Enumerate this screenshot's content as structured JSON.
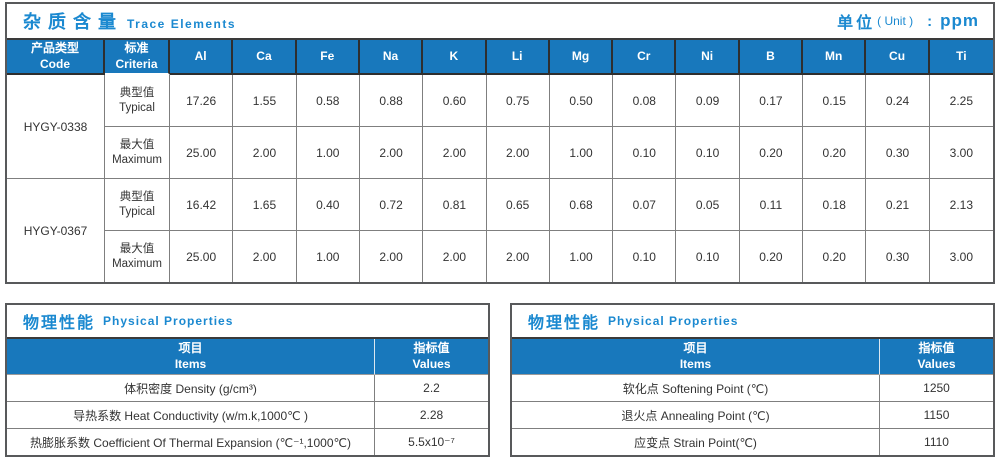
{
  "colors": {
    "header_blue": "#1878bc",
    "title_blue": "#1b89d0",
    "grid_gray": "#7f7f7f",
    "frame_gray": "#58595b",
    "text": "#333333"
  },
  "trace_table": {
    "title_zh": "杂质含量",
    "title_en": "Trace Elements",
    "unit_zh": "单位",
    "unit_en": "( Unit )",
    "unit_colon": ":",
    "unit_value": "ppm",
    "col_code_zh": "产品类型",
    "col_code_en": "Code",
    "col_criteria_zh": "标准",
    "col_criteria_en": "Criteria",
    "elements": [
      "Al",
      "Ca",
      "Fe",
      "Na",
      "K",
      "Li",
      "Mg",
      "Cr",
      "Ni",
      "B",
      "Mn",
      "Cu",
      "Ti"
    ],
    "products": [
      {
        "code": "HYGY-0338",
        "rows": [
          {
            "label_zh": "典型值",
            "label_en": "Typical",
            "values": [
              "17.26",
              "1.55",
              "0.58",
              "0.88",
              "0.60",
              "0.75",
              "0.50",
              "0.08",
              "0.09",
              "0.17",
              "0.15",
              "0.24",
              "2.25"
            ]
          },
          {
            "label_zh": "最大值",
            "label_en": "Maximum",
            "values": [
              "25.00",
              "2.00",
              "1.00",
              "2.00",
              "2.00",
              "2.00",
              "1.00",
              "0.10",
              "0.10",
              "0.20",
              "0.20",
              "0.30",
              "3.00"
            ]
          }
        ]
      },
      {
        "code": "HYGY-0367",
        "rows": [
          {
            "label_zh": "典型值",
            "label_en": "Typical",
            "values": [
              "16.42",
              "1.65",
              "0.40",
              "0.72",
              "0.81",
              "0.65",
              "0.68",
              "0.07",
              "0.05",
              "0.11",
              "0.18",
              "0.21",
              "2.13"
            ]
          },
          {
            "label_zh": "最大值",
            "label_en": "Maximum",
            "values": [
              "25.00",
              "2.00",
              "1.00",
              "2.00",
              "2.00",
              "2.00",
              "1.00",
              "0.10",
              "0.10",
              "0.20",
              "0.20",
              "0.30",
              "3.00"
            ]
          }
        ]
      }
    ]
  },
  "physical_left": {
    "title_zh": "物理性能",
    "title_en": "Physical Properties",
    "col_item_zh": "项目",
    "col_item_en": "Items",
    "col_value_zh": "指标值",
    "col_value_en": "Values",
    "rows": [
      {
        "item": "体积密度 Density (g/cm³)",
        "value": "2.2"
      },
      {
        "item": "导热系数 Heat Conductivity (w/m.k,1000℃ )",
        "value": "2.28"
      },
      {
        "item": "热膨胀系数 Coefficient Of Thermal Expansion (℃⁻¹,1000℃)",
        "value": "5.5x10⁻⁷"
      }
    ]
  },
  "physical_right": {
    "title_zh": "物理性能",
    "title_en": "Physical Properties",
    "col_item_zh": "项目",
    "col_item_en": "Items",
    "col_value_zh": "指标值",
    "col_value_en": "Values",
    "rows": [
      {
        "item": "软化点 Softening Point (℃)",
        "value": "1250"
      },
      {
        "item": "退火点 Annealing Point (℃)",
        "value": "1150"
      },
      {
        "item": "应变点 Strain Point(℃)",
        "value": "1110"
      }
    ]
  }
}
